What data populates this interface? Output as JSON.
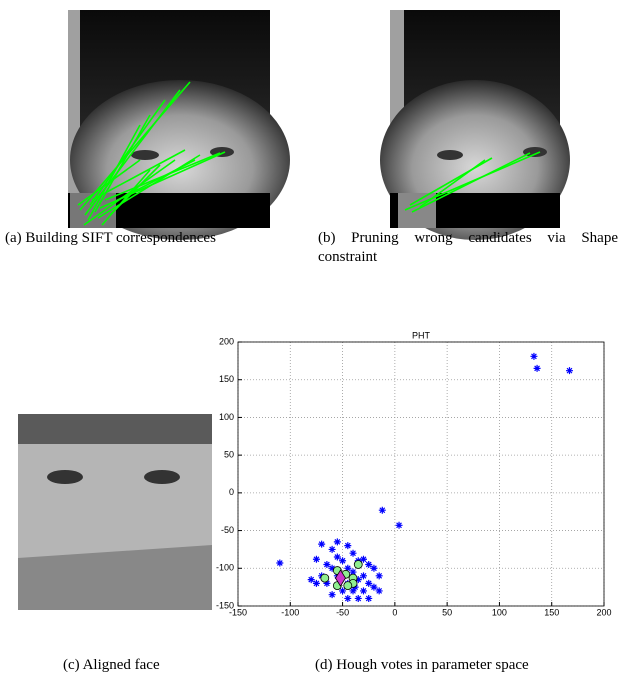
{
  "panels": [
    {
      "caption": "(a) Building SIFT correspondences"
    },
    {
      "caption": "(b) Pruning wrong candidates via Shape constraint"
    },
    {
      "caption": "(c) Aligned face"
    },
    {
      "caption": "(d) Hough votes in parameter space"
    }
  ],
  "chart_data": {
    "type": "scatter",
    "title": "PHT",
    "xlim": [
      -150,
      200
    ],
    "ylim": [
      -150,
      200
    ],
    "xticks": [
      -150,
      -100,
      -50,
      0,
      50,
      100,
      150,
      200
    ],
    "yticks": [
      -150,
      -100,
      -50,
      0,
      50,
      100,
      150,
      200
    ],
    "grid": true,
    "series": [
      {
        "color": "#0000ff",
        "marker": "asterisk",
        "x": [
          133,
          136,
          167,
          -12,
          4,
          -110,
          -70,
          -60,
          -55,
          -45,
          -40,
          -35,
          -30,
          -25,
          -75,
          -65,
          -50,
          -60,
          -45,
          -55,
          -40,
          -35,
          -30,
          -25,
          -20,
          -70,
          -65,
          -50,
          -40,
          -35,
          -45,
          -60,
          -30,
          -15,
          -25,
          -75,
          -80,
          -20,
          -15,
          -55,
          -45,
          -38
        ],
        "values": [
          181,
          165,
          162,
          -23,
          -43,
          -93,
          -68,
          -75,
          -65,
          -70,
          -80,
          -90,
          -88,
          -95,
          -88,
          -95,
          -90,
          -100,
          -100,
          -110,
          -105,
          -115,
          -110,
          -120,
          -125,
          -110,
          -120,
          -130,
          -130,
          -140,
          -140,
          -135,
          -130,
          -130,
          -140,
          -120,
          -115,
          -100,
          -110,
          -85,
          -120,
          -125
        ]
      },
      {
        "color": "#90ee90",
        "marker": "circle",
        "x": [
          -67,
          -55,
          -47,
          -40,
          -35,
          -40,
          -55,
          -45
        ],
        "values": [
          -113,
          -103,
          -108,
          -113,
          -95,
          -120,
          -123,
          -123
        ]
      },
      {
        "color": "#cc33cc",
        "marker": "diamond",
        "x": [
          -52
        ],
        "values": [
          -113
        ]
      }
    ]
  }
}
